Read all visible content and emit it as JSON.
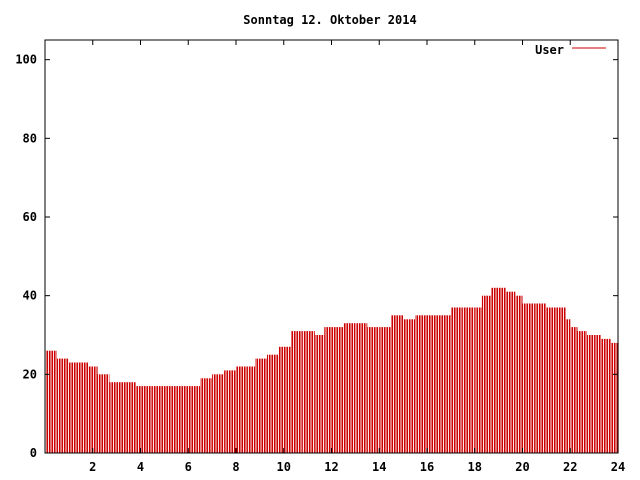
{
  "chart_data": {
    "type": "bar",
    "title": "Sonntag 12. Oktober 2014",
    "xlabel": "",
    "ylabel": "",
    "xlim": [
      0,
      24
    ],
    "ylim": [
      0,
      105
    ],
    "xticks": [
      2,
      4,
      6,
      8,
      10,
      12,
      14,
      16,
      18,
      20,
      22,
      24
    ],
    "yticks": [
      0,
      20,
      40,
      60,
      80,
      100
    ],
    "legend_position": "top-right",
    "grid": false,
    "series": [
      {
        "name": "User",
        "color": "#cc0000",
        "points": [
          [
            0.0,
            26
          ],
          [
            0.5,
            24
          ],
          [
            1.0,
            23
          ],
          [
            1.5,
            23
          ],
          [
            1.8,
            22
          ],
          [
            2.2,
            20
          ],
          [
            2.7,
            18
          ],
          [
            3.5,
            18
          ],
          [
            3.8,
            17
          ],
          [
            4.5,
            17
          ],
          [
            5.5,
            17
          ],
          [
            6.2,
            17
          ],
          [
            6.5,
            19
          ],
          [
            7.0,
            20
          ],
          [
            7.5,
            21
          ],
          [
            8.0,
            22
          ],
          [
            8.5,
            22
          ],
          [
            8.8,
            24
          ],
          [
            9.3,
            25
          ],
          [
            9.8,
            27
          ],
          [
            10.3,
            31
          ],
          [
            10.8,
            31
          ],
          [
            11.3,
            30
          ],
          [
            11.7,
            32
          ],
          [
            12.0,
            32
          ],
          [
            12.5,
            33
          ],
          [
            13.0,
            33
          ],
          [
            13.5,
            32
          ],
          [
            14.0,
            32
          ],
          [
            14.5,
            35
          ],
          [
            15.0,
            34
          ],
          [
            15.5,
            35
          ],
          [
            16.0,
            35
          ],
          [
            16.5,
            35
          ],
          [
            17.0,
            37
          ],
          [
            17.5,
            37
          ],
          [
            18.0,
            37
          ],
          [
            18.3,
            40
          ],
          [
            18.7,
            42
          ],
          [
            19.0,
            42
          ],
          [
            19.3,
            41
          ],
          [
            19.7,
            40
          ],
          [
            20.0,
            38
          ],
          [
            20.5,
            38
          ],
          [
            21.0,
            37
          ],
          [
            21.5,
            37
          ],
          [
            21.8,
            34
          ],
          [
            22.0,
            32
          ],
          [
            22.3,
            31
          ],
          [
            22.7,
            30
          ],
          [
            23.0,
            30
          ],
          [
            23.3,
            29
          ],
          [
            23.5,
            29
          ],
          [
            23.7,
            28
          ],
          [
            24.0,
            28
          ]
        ]
      }
    ]
  }
}
